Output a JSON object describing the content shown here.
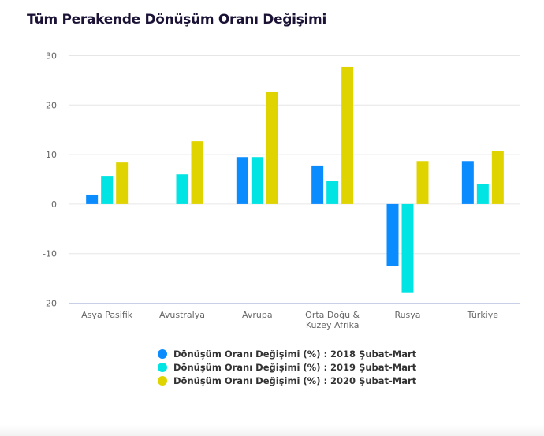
{
  "chart_data": {
    "type": "bar",
    "title": "Tüm Perakende Dönüşüm Oranı Değişimi",
    "categories": [
      [
        "Asya Pasifik"
      ],
      [
        "Avustralya"
      ],
      [
        "Avrupa"
      ],
      [
        "Orta Doğu &",
        "Kuzey Afrika"
      ],
      [
        "Rusya"
      ],
      [
        "Türkiye"
      ]
    ],
    "series": [
      {
        "name": "Dönüşüm Oranı Değişimi (%) : 2018 Şubat-Mart",
        "color": "#0a8cff",
        "values": [
          1.9,
          0,
          9.5,
          7.8,
          -12.5,
          8.7
        ]
      },
      {
        "name": "Dönüşüm Oranı Değişimi (%) : 2019 Şubat-Mart",
        "color": "#00e4e4",
        "values": [
          5.7,
          6.0,
          9.5,
          4.6,
          -17.8,
          4.0
        ]
      },
      {
        "name": "Dönüşüm Oranı Değişimi (%) : 2020 Şubat-Mart",
        "color": "#e0d400",
        "values": [
          8.4,
          12.7,
          22.6,
          27.7,
          8.7,
          10.8
        ]
      }
    ],
    "ylim": [
      -20,
      30
    ],
    "yticks": [
      "30",
      "20",
      "10",
      "0",
      "-10",
      "-20"
    ],
    "grid": true,
    "legend": "bottom"
  }
}
